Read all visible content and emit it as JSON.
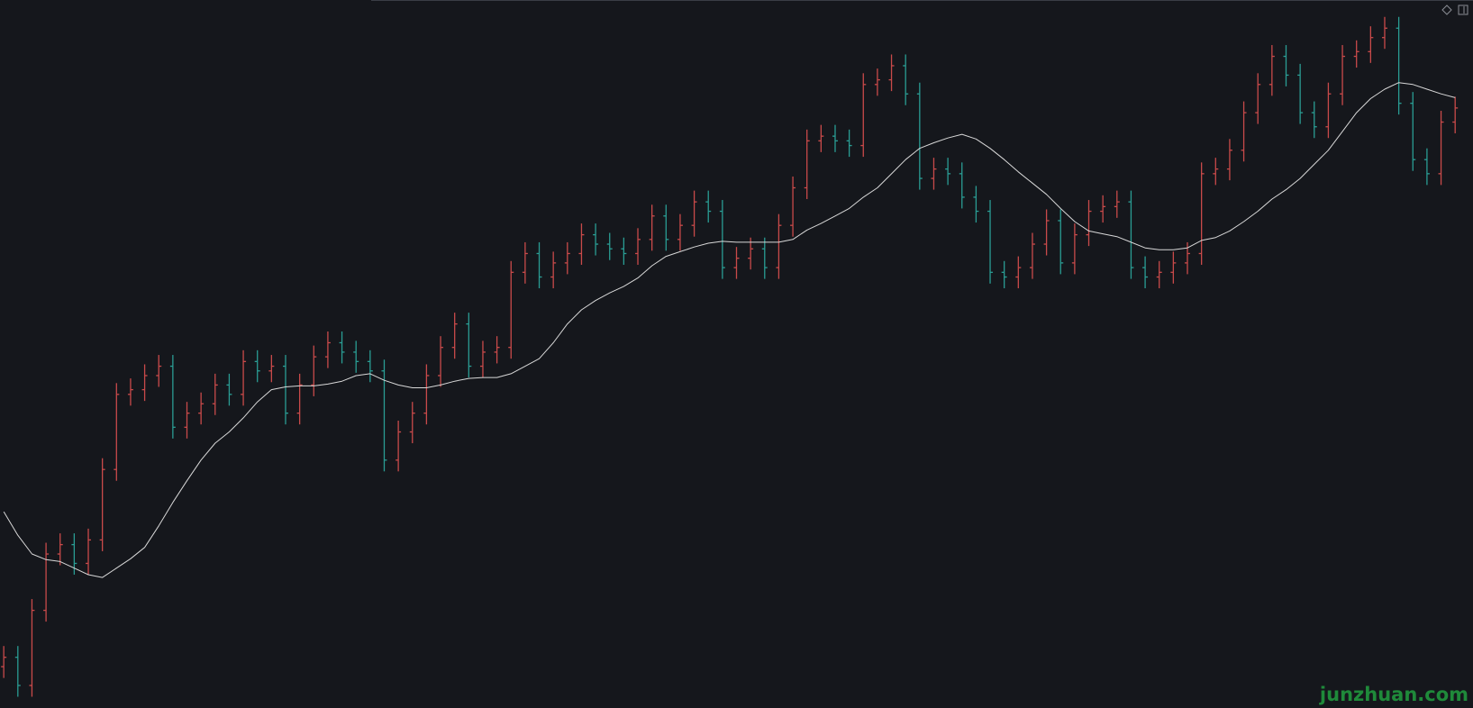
{
  "chart_data": {
    "type": "ohlc",
    "open": [
      44,
      54,
      24,
      104,
      164,
      174,
      154,
      179,
      254,
      334,
      339,
      354,
      364,
      299,
      314,
      324,
      344,
      334,
      369,
      359,
      364,
      314,
      344,
      374,
      389,
      379,
      369,
      359,
      264,
      294,
      314,
      354,
      384,
      409,
      364,
      379,
      384,
      464,
      484,
      459,
      474,
      484,
      504,
      494,
      489,
      484,
      499,
      524,
      499,
      514,
      539,
      529,
      469,
      479,
      489,
      469,
      514,
      554,
      604,
      609,
      604,
      599,
      664,
      669,
      684,
      654,
      564,
      574,
      569,
      544,
      529,
      464,
      459,
      469,
      494,
      519,
      474,
      504,
      529,
      534,
      539,
      469,
      459,
      464,
      474,
      484,
      569,
      574,
      594,
      634,
      664,
      694,
      674,
      634,
      619,
      654,
      694,
      699,
      714,
      724,
      644,
      584,
      569,
      624
    ],
    "high": [
      66,
      66,
      116,
      176,
      186,
      186,
      191,
      266,
      346,
      351,
      366,
      376,
      376,
      326,
      336,
      356,
      356,
      381,
      381,
      376,
      376,
      356,
      386,
      401,
      401,
      391,
      381,
      371,
      306,
      326,
      366,
      396,
      421,
      421,
      391,
      396,
      476,
      496,
      496,
      486,
      496,
      516,
      516,
      506,
      501,
      511,
      536,
      536,
      526,
      551,
      551,
      541,
      491,
      501,
      501,
      526,
      566,
      616,
      621,
      621,
      616,
      676,
      681,
      696,
      696,
      666,
      586,
      586,
      581,
      556,
      541,
      476,
      481,
      506,
      531,
      531,
      516,
      541,
      546,
      551,
      551,
      481,
      476,
      486,
      496,
      581,
      586,
      606,
      646,
      676,
      706,
      706,
      686,
      646,
      666,
      706,
      711,
      726,
      736,
      736,
      656,
      596,
      636,
      651
    ],
    "low": [
      32,
      12,
      12,
      92,
      152,
      142,
      142,
      167,
      242,
      322,
      327,
      342,
      287,
      287,
      302,
      312,
      322,
      322,
      347,
      347,
      302,
      302,
      332,
      362,
      367,
      357,
      347,
      252,
      252,
      282,
      302,
      342,
      372,
      352,
      352,
      367,
      372,
      452,
      447,
      447,
      462,
      472,
      482,
      477,
      472,
      472,
      487,
      487,
      487,
      502,
      517,
      457,
      457,
      467,
      457,
      457,
      502,
      542,
      592,
      592,
      587,
      587,
      652,
      657,
      642,
      552,
      552,
      557,
      532,
      517,
      452,
      447,
      447,
      457,
      482,
      462,
      462,
      492,
      517,
      522,
      457,
      447,
      447,
      452,
      462,
      472,
      557,
      562,
      582,
      622,
      652,
      662,
      622,
      607,
      607,
      642,
      682,
      687,
      702,
      632,
      572,
      557,
      557,
      612
    ],
    "close": [
      54,
      24,
      104,
      164,
      174,
      154,
      179,
      254,
      334,
      339,
      354,
      364,
      299,
      314,
      324,
      344,
      334,
      369,
      359,
      364,
      314,
      344,
      374,
      389,
      379,
      369,
      359,
      264,
      294,
      314,
      354,
      384,
      409,
      364,
      379,
      384,
      464,
      484,
      459,
      474,
      484,
      504,
      494,
      489,
      484,
      499,
      524,
      499,
      514,
      539,
      529,
      469,
      479,
      489,
      469,
      514,
      554,
      604,
      609,
      604,
      599,
      664,
      669,
      684,
      654,
      564,
      574,
      569,
      544,
      529,
      464,
      459,
      469,
      494,
      519,
      474,
      504,
      529,
      534,
      539,
      469,
      459,
      464,
      474,
      484,
      569,
      574,
      594,
      634,
      664,
      694,
      674,
      634,
      619,
      654,
      694,
      699,
      714,
      724,
      644,
      584,
      569,
      624,
      639
    ],
    "ma": [
      209,
      184,
      164,
      158,
      156,
      149,
      142,
      139,
      149,
      159,
      171,
      194,
      219,
      242,
      264,
      282,
      294,
      309,
      326,
      339,
      342,
      343,
      343,
      345,
      348,
      354,
      356,
      349,
      344,
      341,
      341,
      344,
      348,
      351,
      352,
      352,
      356,
      364,
      372,
      389,
      409,
      424,
      434,
      442,
      449,
      458,
      471,
      481,
      486,
      491,
      495,
      497,
      496,
      496,
      496,
      496,
      499,
      509,
      516,
      524,
      532,
      544,
      554,
      569,
      584,
      596,
      602,
      607,
      611,
      606,
      596,
      584,
      571,
      559,
      547,
      532,
      518,
      508,
      505,
      502,
      496,
      490,
      488,
      488,
      490,
      498,
      501,
      508,
      518,
      529,
      542,
      552,
      564,
      579,
      594,
      614,
      634,
      649,
      659,
      666,
      664,
      659,
      654,
      650
    ],
    "up_color": "#c94a4a",
    "down_color": "#2a9d94",
    "ma_color": "#d8d8d8",
    "ylim": [
      0,
      754
    ]
  },
  "watermark": "junzhuan.com"
}
